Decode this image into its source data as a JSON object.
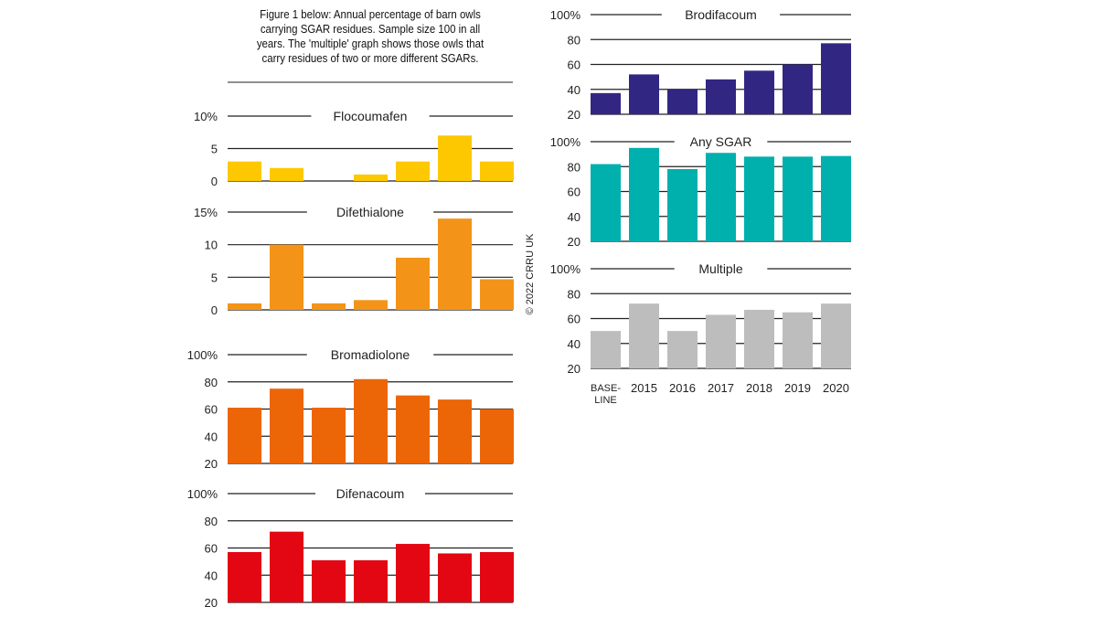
{
  "caption": "Figure 1 below: Annual percentage of barn owls carrying SGAR residues. Sample size 100 in all years. The 'multiple' graph shows those owls that carry residues of two or more different SGARs.",
  "copyright": "© 2022 CRRU UK",
  "chart_data": [
    {
      "type": "bar",
      "title": "Flocoumafen",
      "color": "#FDC800",
      "categories": [
        "BASE-LINE",
        "2015",
        "2016",
        "2017",
        "2018",
        "2019",
        "2020"
      ],
      "values": [
        3,
        2,
        0,
        1,
        3,
        7,
        3
      ],
      "ylim": [
        0,
        10
      ],
      "yticks": [
        "0",
        "5",
        "10%"
      ],
      "grid": true
    },
    {
      "type": "bar",
      "title": "Difethialone",
      "color": "#F39419",
      "categories": [
        "BASE-LINE",
        "2015",
        "2016",
        "2017",
        "2018",
        "2019",
        "2020"
      ],
      "values": [
        1,
        10,
        1,
        1.5,
        8,
        14,
        4.7
      ],
      "ylim": [
        0,
        15
      ],
      "yticks": [
        "0",
        "5",
        "10",
        "15%"
      ],
      "grid": true
    },
    {
      "type": "bar",
      "title": "Bromadiolone",
      "color": "#EC6608",
      "categories": [
        "BASE-LINE",
        "2015",
        "2016",
        "2017",
        "2018",
        "2019",
        "2020"
      ],
      "values": [
        61,
        75,
        61,
        82,
        70,
        67,
        60
      ],
      "ylim": [
        20,
        100
      ],
      "yticks": [
        "20",
        "40",
        "60",
        "80",
        "100%"
      ],
      "grid": true
    },
    {
      "type": "bar",
      "title": "Difenacoum",
      "color": "#E30613",
      "categories": [
        "BASE-LINE",
        "2015",
        "2016",
        "2017",
        "2018",
        "2019",
        "2020"
      ],
      "values": [
        57,
        72,
        51,
        51,
        63,
        56,
        57
      ],
      "ylim": [
        20,
        100
      ],
      "yticks": [
        "20",
        "40",
        "60",
        "80",
        "100%"
      ],
      "grid": true
    },
    {
      "type": "bar",
      "title": "Brodifacoum",
      "color": "#312783",
      "categories": [
        "BASE-LINE",
        "2015",
        "2016",
        "2017",
        "2018",
        "2019",
        "2020"
      ],
      "values": [
        37,
        52,
        40,
        48,
        55,
        60,
        77
      ],
      "ylim": [
        20,
        100
      ],
      "yticks": [
        "20",
        "40",
        "60",
        "80",
        "100%"
      ],
      "grid": true
    },
    {
      "type": "bar",
      "title": "Any SGAR",
      "color": "#00B0AD",
      "categories": [
        "BASE-LINE",
        "2015",
        "2016",
        "2017",
        "2018",
        "2019",
        "2020"
      ],
      "values": [
        82,
        95,
        78,
        91,
        88,
        88,
        88.5
      ],
      "ylim": [
        20,
        100
      ],
      "yticks": [
        "20",
        "40",
        "60",
        "80",
        "100%"
      ],
      "grid": true
    },
    {
      "type": "bar",
      "title": "Multiple",
      "color": "#BDBDBD",
      "categories": [
        "BASE-LINE",
        "2015",
        "2016",
        "2017",
        "2018",
        "2019",
        "2020"
      ],
      "values": [
        50,
        72,
        50,
        63,
        67,
        65,
        72
      ],
      "ylim": [
        20,
        100
      ],
      "yticks": [
        "20",
        "40",
        "60",
        "80",
        "100%"
      ],
      "grid": true,
      "xlabels": [
        "BASE-",
        "LINE"
      ],
      "show_xticks": true
    }
  ]
}
